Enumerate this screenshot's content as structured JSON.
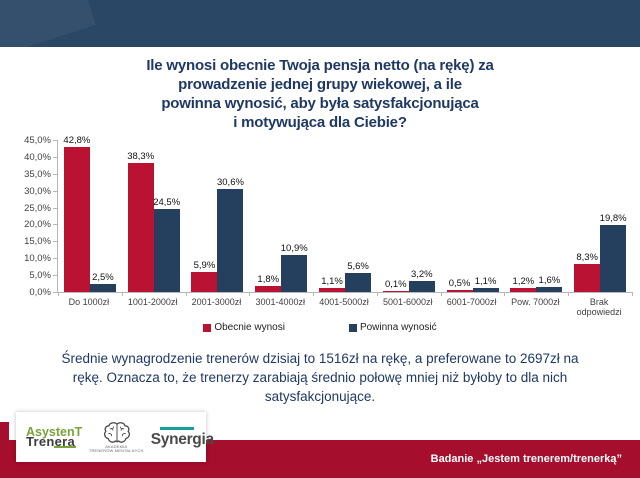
{
  "slide_title": {
    "full": "Ile wynosi obecnie Twoja pensja netto (na rękę) za prowadzenie jednej grupy wiekowej, a ile powinna wynosić, aby była satysfakcjonująca i motywująca dla Ciebie?",
    "lines": [
      "Ile wynosi obecnie Twoja pensja netto (na rękę) za",
      "prowadzenie jednej grupy wiekowej, a ile",
      "powinna wynosić, aby była satysfakcjonująca",
      "i motywująca dla Ciebie?"
    ]
  },
  "chart_data": {
    "type": "bar",
    "categories": [
      "Do 1000zł",
      "1001-2000zł",
      "2001-3000zł",
      "3001-4000zł",
      "4001-5000zł",
      "5001-6000zł",
      "6001-7000zł",
      "Pow. 7000zł",
      "Brak odpowiedzi"
    ],
    "series": [
      {
        "name": "Obecnie wynosi",
        "color": "#b91233",
        "values": [
          42.8,
          38.3,
          5.9,
          1.8,
          1.1,
          0.1,
          0.5,
          1.2,
          8.3
        ],
        "labels": [
          "42,8%",
          "38,3%",
          "5,9%",
          "1,8%",
          "1,1%",
          "0,1%",
          "0,5%",
          "1,2%",
          "8,3%"
        ]
      },
      {
        "name": "Powinna wynosić",
        "color": "#24405e",
        "values": [
          2.5,
          24.5,
          30.6,
          10.9,
          5.6,
          3.2,
          1.1,
          1.6,
          19.8
        ],
        "labels": [
          "2,5%",
          "24,5%",
          "30,6%",
          "10,9%",
          "5,6%",
          "3,2%",
          "1,1%",
          "1,6%",
          "19,8%"
        ]
      }
    ],
    "ylim": [
      0,
      45
    ],
    "ytick_step": 5,
    "y_tick_labels": [
      "0,0%",
      "5,0%",
      "10,0%",
      "15,0%",
      "20,0%",
      "25,0%",
      "30,0%",
      "35,0%",
      "40,0%",
      "45,0%"
    ],
    "grid": false,
    "data_labels": true,
    "legend_position": "bottom"
  },
  "summary": {
    "full": "Średnie wynagrodzenie trenerów dzisiaj to 1516zł na rękę, a preferowane to 2697zł na rękę. Oznacza to, że trenerzy zarabiają średnio połowę mniej niż byłoby to dla nich satysfakcjonujące.",
    "lines": [
      "Średnie wynagrodzenie trenerów dzisiaj to 1516zł na rękę, a preferowane to 2697zł na",
      "rękę. Oznacza to, że trenerzy zarabiają średnio połowę mniej niż byłoby to dla nich",
      "satysfakcjonujące."
    ]
  },
  "footer": {
    "label": "Badanie „Jestem trenerem/trenerką”"
  },
  "logos": {
    "asystent_trenera": {
      "line1": "AsystenT",
      "line2": "Trenera"
    },
    "akademia": {
      "caption_line1": "AKADEMIA",
      "caption_line2": "TRENERÓW MENTALNYCH"
    },
    "synergia": {
      "name": "Synergia"
    }
  },
  "colors": {
    "header_navy": "#2b4766",
    "title_navy": "#1f3864",
    "bar_red": "#b91233",
    "bar_navy": "#24405e",
    "band_red": "#a50e2d",
    "axis_gray": "#b7b7b7",
    "label_gray": "#3f3f3f"
  }
}
